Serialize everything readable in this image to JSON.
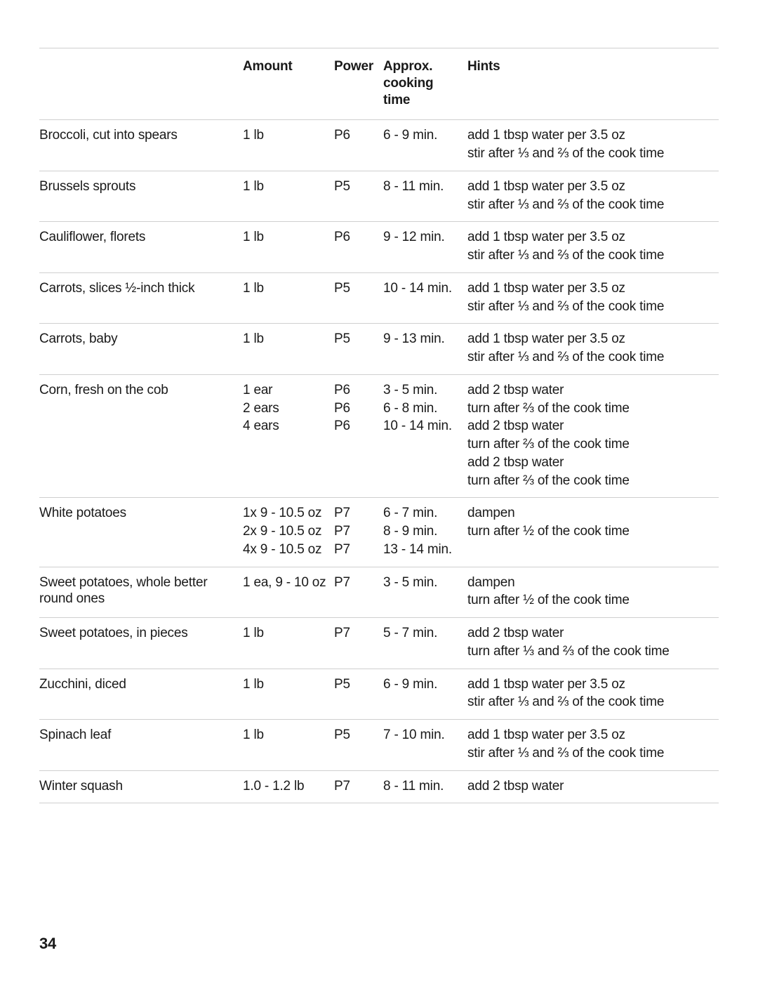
{
  "page_number": "34",
  "table": {
    "columns": {
      "food": "",
      "amount": "Amount",
      "power": "Power",
      "time": "Approx. cooking time",
      "hints": "Hints"
    },
    "rows": [
      {
        "food": "Broccoli, cut into spears",
        "lines": [
          {
            "amount": "1 lb",
            "power": "P6",
            "time": "6 - 9 min."
          }
        ],
        "hints": [
          "add 1 tbsp water per 3.5 oz",
          "stir after ⅓ and ⅔ of the cook time"
        ]
      },
      {
        "food": "Brussels sprouts",
        "lines": [
          {
            "amount": "1 lb",
            "power": "P5",
            "time": "8 - 11 min."
          }
        ],
        "hints": [
          "add 1 tbsp water per 3.5 oz",
          "stir after ⅓ and ⅔ of the cook time"
        ]
      },
      {
        "food": "Cauliflower, florets",
        "lines": [
          {
            "amount": "1 lb",
            "power": "P6",
            "time": "9 - 12 min."
          }
        ],
        "hints": [
          "add 1 tbsp water per 3.5 oz",
          "stir after ⅓ and ⅔ of the cook time"
        ]
      },
      {
        "food": "Carrots, slices ½-inch thick",
        "lines": [
          {
            "amount": "1 lb",
            "power": "P5",
            "time": "10 - 14 min."
          }
        ],
        "hints": [
          "add 1 tbsp water per 3.5 oz",
          "stir after ⅓ and ⅔ of the cook time"
        ]
      },
      {
        "food": "Carrots, baby",
        "lines": [
          {
            "amount": "1 lb",
            "power": "P5",
            "time": "9 - 13 min."
          }
        ],
        "hints": [
          "add 1 tbsp water per 3.5 oz",
          "stir after ⅓ and ⅔ of the cook time"
        ]
      },
      {
        "food": "Corn, fresh on the cob",
        "lines": [
          {
            "amount": "1 ear",
            "power": "P6",
            "time": "3 - 5 min."
          },
          {
            "amount": "2 ears",
            "power": "P6",
            "time": "6 - 8 min."
          },
          {
            "amount": "4 ears",
            "power": "P6",
            "time": "10 - 14 min."
          }
        ],
        "hints": [
          "add 2 tbsp water",
          "turn after ⅔ of the cook time",
          "add 2 tbsp water",
          "turn after ⅔ of the cook time",
          "add 2 tbsp water",
          "turn after ⅔ of the cook time"
        ]
      },
      {
        "food": "White potatoes",
        "lines": [
          {
            "amount": "1x 9 - 10.5 oz",
            "power": "P7",
            "time": "6 - 7 min."
          },
          {
            "amount": "2x 9 - 10.5 oz",
            "power": "P7",
            "time": "8 - 9 min."
          },
          {
            "amount": "4x 9 - 10.5 oz",
            "power": "P7",
            "time": "13 - 14 min."
          }
        ],
        "hints": [
          "dampen",
          "turn after ½ of the cook time"
        ]
      },
      {
        "food": "Sweet potatoes, whole better round ones",
        "lines": [
          {
            "amount": "1 ea, 9 - 10 oz",
            "power": "P7",
            "time": "3 - 5 min."
          }
        ],
        "hints": [
          "dampen",
          "turn after ½ of the cook time"
        ]
      },
      {
        "food": "Sweet potatoes, in pieces",
        "lines": [
          {
            "amount": "1 lb",
            "power": "P7",
            "time": "5 - 7 min."
          }
        ],
        "hints": [
          "add 2 tbsp water",
          "turn after ⅓ and ⅔ of the cook time"
        ]
      },
      {
        "food": "Zucchini, diced",
        "lines": [
          {
            "amount": "1 lb",
            "power": "P5",
            "time": "6 - 9 min."
          }
        ],
        "hints": [
          "add 1 tbsp water per 3.5 oz",
          "stir after ⅓ and ⅔ of the cook time"
        ]
      },
      {
        "food": "Spinach leaf",
        "lines": [
          {
            "amount": "1 lb",
            "power": "P5",
            "time": "7 - 10 min."
          }
        ],
        "hints": [
          "add 1 tbsp water per 3.5 oz",
          "stir after ⅓ and ⅔ of the cook time"
        ]
      },
      {
        "food": "Winter squash",
        "lines": [
          {
            "amount": "1.0 - 1.2 lb",
            "power": "P7",
            "time": "8 - 11 min."
          }
        ],
        "hints": [
          "add 2 tbsp water"
        ]
      }
    ]
  }
}
